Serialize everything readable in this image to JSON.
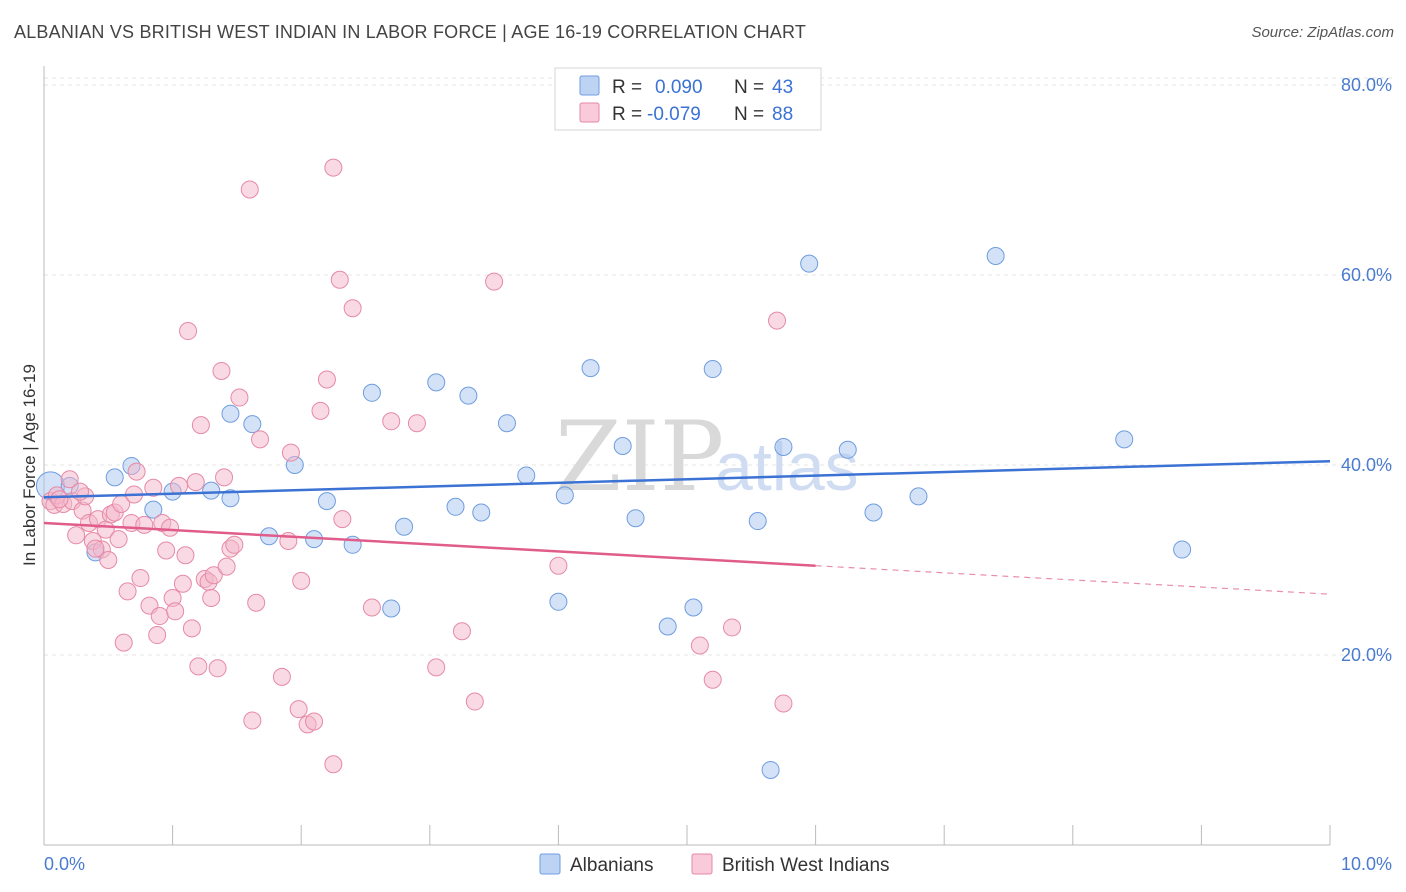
{
  "title": "ALBANIAN VS BRITISH WEST INDIAN IN LABOR FORCE | AGE 16-19 CORRELATION CHART",
  "source": "Source: ZipAtlas.com",
  "watermark": {
    "part1": "ZIP",
    "part2": "atlas"
  },
  "stats": [
    {
      "r_label": "R =",
      "r_value": "0.090",
      "n_label": "N =",
      "n_value": "43",
      "color": "#a9c6ef"
    },
    {
      "r_label": "R =",
      "r_value": "-0.079",
      "n_label": "N =",
      "n_value": "88",
      "color": "#f4b6c9"
    }
  ],
  "chart_data": {
    "type": "scatter",
    "title": "ALBANIAN VS BRITISH WEST INDIAN IN LABOR FORCE | AGE 16-19 CORRELATION CHART",
    "xlabel": "",
    "ylabel": "In Labor Force | Age 16-19",
    "xlim": [
      0,
      10
    ],
    "ylim": [
      0,
      82
    ],
    "x_tick_labels": [
      "0.0%",
      "10.0%"
    ],
    "y_ticks": [
      20,
      40,
      60,
      80
    ],
    "y_tick_labels": [
      "20.0%",
      "40.0%",
      "60.0%",
      "80.0%"
    ],
    "grid": true,
    "legend_position": "bottom-center",
    "series": [
      {
        "name": "Albanians",
        "color": "#a9c6ef",
        "edge_color": "#6f9de0",
        "trend_color": "#3b72d4",
        "trend": {
          "x": [
            0,
            10
          ],
          "y": [
            36.6,
            40.4
          ]
        },
        "points": [
          [
            0.05,
            37.8
          ],
          [
            0.2,
            37.8
          ],
          [
            0.4,
            30.8
          ],
          [
            0.55,
            38.7
          ],
          [
            0.68,
            39.9
          ],
          [
            0.85,
            35.3
          ],
          [
            1.0,
            37.2
          ],
          [
            1.3,
            37.3
          ],
          [
            1.45,
            36.5
          ],
          [
            1.45,
            45.4
          ],
          [
            1.62,
            44.3
          ],
          [
            1.75,
            32.5
          ],
          [
            1.95,
            40.0
          ],
          [
            2.1,
            32.2
          ],
          [
            2.2,
            36.2
          ],
          [
            2.4,
            31.6
          ],
          [
            2.55,
            47.6
          ],
          [
            2.7,
            24.9
          ],
          [
            2.8,
            33.5
          ],
          [
            3.05,
            48.7
          ],
          [
            3.2,
            35.6
          ],
          [
            3.3,
            47.3
          ],
          [
            3.4,
            35.0
          ],
          [
            3.6,
            44.4
          ],
          [
            3.75,
            38.9
          ],
          [
            4.0,
            25.6
          ],
          [
            4.05,
            36.8
          ],
          [
            4.25,
            50.2
          ],
          [
            4.5,
            42.0
          ],
          [
            4.6,
            34.4
          ],
          [
            4.85,
            23.0
          ],
          [
            5.05,
            25.0
          ],
          [
            5.2,
            50.1
          ],
          [
            5.55,
            34.1
          ],
          [
            5.65,
            7.9
          ],
          [
            5.75,
            41.9
          ],
          [
            5.95,
            61.2
          ],
          [
            6.25,
            41.6
          ],
          [
            6.45,
            35.0
          ],
          [
            6.8,
            36.7
          ],
          [
            7.4,
            62.0
          ],
          [
            8.4,
            42.7
          ],
          [
            8.85,
            31.1
          ]
        ]
      },
      {
        "name": "British West Indians",
        "color": "#f4b6c9",
        "edge_color": "#e68aa6",
        "trend_color": "#e05c8a",
        "trend": {
          "x": [
            0,
            6.0
          ],
          "y": [
            33.9,
            29.4
          ]
        },
        "trend_dashed": {
          "x": [
            6.0,
            10
          ],
          "y": [
            29.4,
            26.4
          ]
        },
        "points": [
          [
            0.05,
            36.2
          ],
          [
            0.08,
            35.8
          ],
          [
            0.1,
            36.8
          ],
          [
            0.15,
            35.9
          ],
          [
            0.2,
            38.5
          ],
          [
            0.22,
            36.2
          ],
          [
            0.25,
            32.6
          ],
          [
            0.3,
            35.2
          ],
          [
            0.32,
            36.7
          ],
          [
            0.35,
            33.9
          ],
          [
            0.38,
            32.0
          ],
          [
            0.42,
            34.3
          ],
          [
            0.45,
            31.1
          ],
          [
            0.48,
            33.2
          ],
          [
            0.5,
            30.0
          ],
          [
            0.52,
            34.8
          ],
          [
            0.55,
            35.0
          ],
          [
            0.58,
            32.2
          ],
          [
            0.6,
            35.9
          ],
          [
            0.62,
            21.3
          ],
          [
            0.65,
            26.7
          ],
          [
            0.68,
            33.9
          ],
          [
            0.7,
            36.9
          ],
          [
            0.72,
            39.3
          ],
          [
            0.75,
            28.1
          ],
          [
            0.78,
            33.7
          ],
          [
            0.82,
            25.2
          ],
          [
            0.85,
            37.6
          ],
          [
            0.88,
            22.1
          ],
          [
            0.9,
            24.1
          ],
          [
            0.92,
            33.9
          ],
          [
            0.95,
            31.0
          ],
          [
            0.98,
            33.4
          ],
          [
            1.0,
            26.0
          ],
          [
            1.02,
            24.6
          ],
          [
            1.05,
            37.8
          ],
          [
            1.08,
            27.5
          ],
          [
            1.1,
            30.5
          ],
          [
            1.12,
            54.1
          ],
          [
            1.15,
            22.8
          ],
          [
            1.18,
            38.2
          ],
          [
            1.2,
            18.8
          ],
          [
            1.22,
            44.2
          ],
          [
            1.25,
            28.0
          ],
          [
            1.28,
            27.7
          ],
          [
            1.3,
            26.0
          ],
          [
            1.32,
            28.4
          ],
          [
            1.35,
            18.6
          ],
          [
            1.38,
            49.9
          ],
          [
            1.4,
            38.7
          ],
          [
            1.42,
            29.3
          ],
          [
            1.45,
            31.2
          ],
          [
            1.48,
            31.6
          ],
          [
            1.52,
            47.1
          ],
          [
            1.6,
            69.0
          ],
          [
            1.62,
            13.1
          ],
          [
            1.65,
            25.5
          ],
          [
            1.68,
            42.7
          ],
          [
            1.85,
            17.7
          ],
          [
            1.9,
            32.0
          ],
          [
            1.92,
            41.3
          ],
          [
            1.98,
            14.3
          ],
          [
            2.0,
            27.8
          ],
          [
            2.05,
            12.7
          ],
          [
            2.1,
            13.0
          ],
          [
            2.15,
            45.7
          ],
          [
            2.2,
            49.0
          ],
          [
            2.25,
            8.5
          ],
          [
            2.25,
            71.3
          ],
          [
            2.3,
            59.5
          ],
          [
            2.32,
            34.3
          ],
          [
            2.4,
            56.5
          ],
          [
            2.55,
            25.0
          ],
          [
            2.7,
            44.6
          ],
          [
            2.9,
            44.4
          ],
          [
            3.05,
            18.7
          ],
          [
            3.25,
            22.5
          ],
          [
            3.35,
            15.1
          ],
          [
            3.5,
            59.3
          ],
          [
            4.0,
            29.4
          ],
          [
            5.1,
            21.0
          ],
          [
            5.2,
            17.4
          ],
          [
            5.35,
            22.9
          ],
          [
            5.7,
            55.2
          ],
          [
            5.75,
            14.9
          ],
          [
            0.12,
            36.4
          ],
          [
            0.28,
            37.2
          ],
          [
            0.4,
            31.2
          ]
        ]
      }
    ]
  }
}
